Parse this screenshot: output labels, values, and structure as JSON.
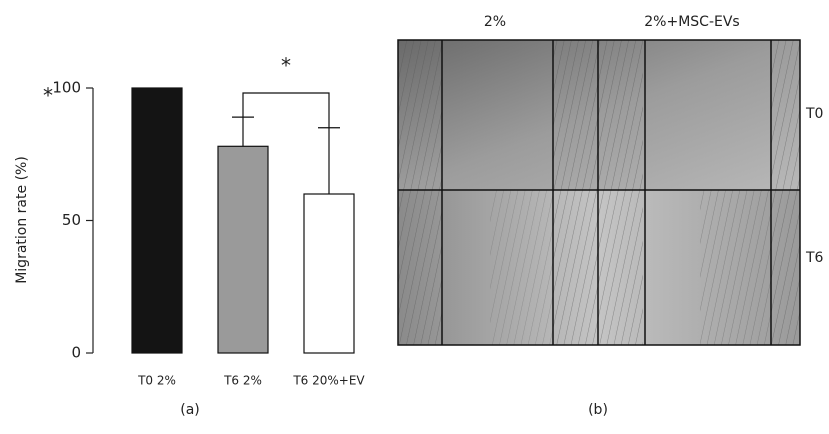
{
  "chart_data": {
    "type": "bar",
    "y_label": "Migration rate (%)",
    "categories": [
      "T0 2%",
      "T6 2%",
      "T6 20%+EV"
    ],
    "values": [
      100,
      78,
      60
    ],
    "errors": [
      null,
      11,
      25
    ],
    "colors": [
      "#141414",
      "#9a9a9a",
      "#ffffff"
    ],
    "ylim": [
      0,
      100
    ],
    "yticks": [
      0,
      50,
      100
    ],
    "annotations": [
      "*",
      "*"
    ],
    "caption": "(a)"
  },
  "figure": {
    "caption": "(b)",
    "columns": [
      "2%",
      "2%+MSC-EVs"
    ],
    "rows": [
      "T0",
      "T6"
    ]
  }
}
